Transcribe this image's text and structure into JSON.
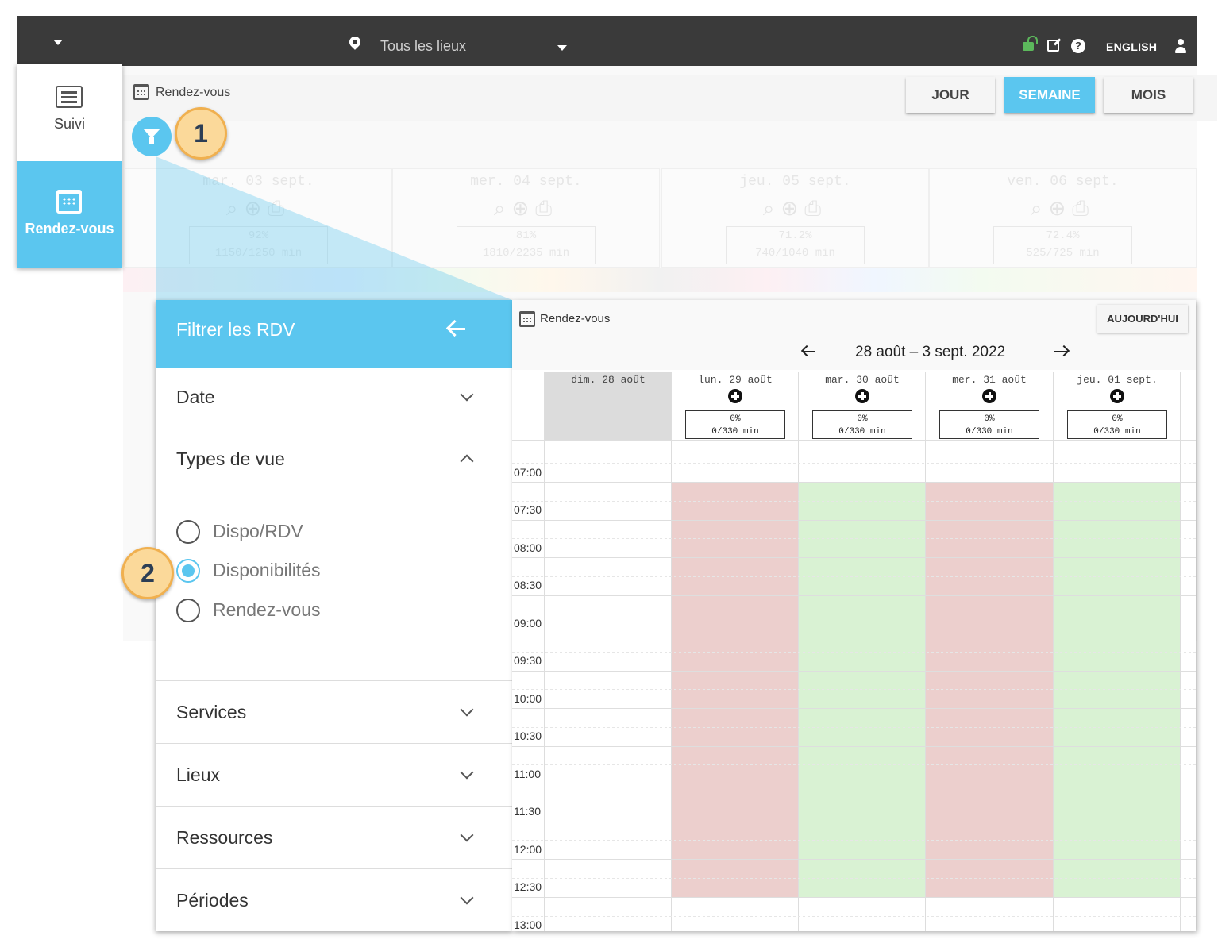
{
  "topbar": {
    "location": "Tous les lieux",
    "language": "ENGLISH",
    "icons": [
      "menu-caret-icon",
      "location-pin-icon",
      "unlock-icon",
      "external-link-icon",
      "help-icon",
      "user-icon"
    ]
  },
  "sidebar": {
    "items": [
      {
        "label": "Suivi",
        "icon": "list-icon",
        "active": false
      },
      {
        "label": "Rendez-vous",
        "icon": "calendar-icon",
        "active": true
      }
    ]
  },
  "page": {
    "title": "Rendez-vous",
    "view_buttons": {
      "day": "JOUR",
      "week": "SEMAINE",
      "month": "MOIS",
      "active": "SEMAINE"
    }
  },
  "background_week": {
    "days": [
      {
        "label": "mar. 03 sept.",
        "pct": "92%",
        "mins": "1150/1250 min"
      },
      {
        "label": "mer. 04 sept.",
        "pct": "81%",
        "mins": "1810/2235 min"
      },
      {
        "label": "jeu. 05 sept.",
        "pct": "71.2%",
        "mins": "740/1040 min"
      },
      {
        "label": "ven. 06 sept.",
        "pct": "72.4%",
        "mins": "525/725 min"
      }
    ]
  },
  "callouts": {
    "one": "1",
    "two": "2"
  },
  "filter_panel": {
    "title": "Filtrer les RDV",
    "sections": {
      "date": "Date",
      "view_types": "Types de vue",
      "services": "Services",
      "places": "Lieux",
      "resources": "Ressources",
      "periods": "Périodes"
    },
    "view_options": [
      {
        "label": "Dispo/RDV",
        "selected": false
      },
      {
        "label": "Disponibilités",
        "selected": true
      },
      {
        "label": "Rendez-vous",
        "selected": false
      }
    ]
  },
  "calendar": {
    "title": "Rendez-vous",
    "today_button": "AUJOURD'HUI",
    "range": "28 août – 3 sept. 2022",
    "days": [
      {
        "label": "dim. 28 août",
        "pct": "",
        "mins": "",
        "status": "closed"
      },
      {
        "label": "lun. 29 août",
        "pct": "0%",
        "mins": "0/330 min",
        "status": "unavailable"
      },
      {
        "label": "mar. 30 août",
        "pct": "0%",
        "mins": "0/330 min",
        "status": "available"
      },
      {
        "label": "mer. 31 août",
        "pct": "0%",
        "mins": "0/330 min",
        "status": "unavailable"
      },
      {
        "label": "jeu. 01 sept.",
        "pct": "0%",
        "mins": "0/330 min",
        "status": "available"
      }
    ],
    "times": [
      "07:00",
      "07:30",
      "08:00",
      "08:30",
      "09:00",
      "09:30",
      "10:00",
      "10:30",
      "11:00",
      "11:30",
      "12:00",
      "12:30",
      "13:00"
    ],
    "colors": {
      "unavailable": "#eccfcd",
      "available": "#d9f2d3",
      "accent": "#5bc6ef"
    }
  }
}
